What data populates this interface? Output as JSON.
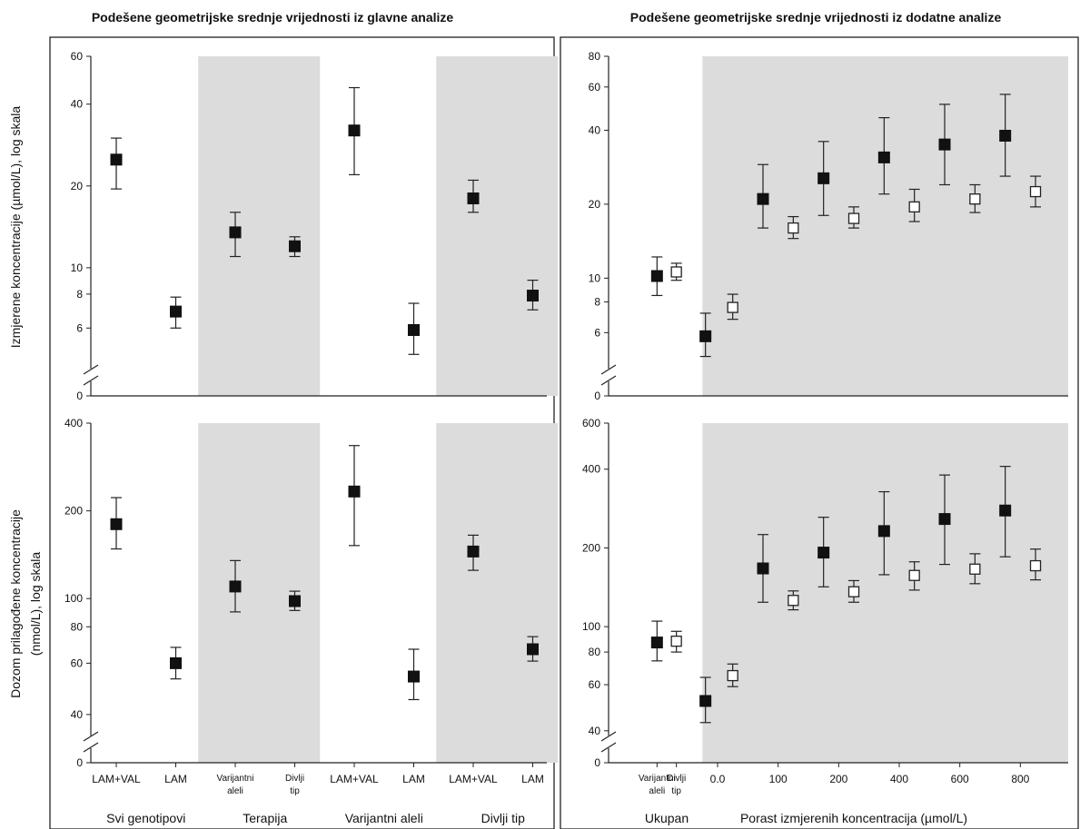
{
  "figure": {
    "left_title": "Podešene geometrijske srednje vrijednosti iz glavne analize",
    "right_title": "Podešene geometrijske srednje vrijednosti iz dodatne analize",
    "ylabel_top": "Izmjerene koncentracije (µmol/L), log skala",
    "ylabel_bottom_line1": "Dozom prilagođene koncentracije",
    "ylabel_bottom_line2": "(nmol/L), log skala"
  },
  "chart_data": [
    {
      "id": "top-left",
      "type": "scatter",
      "yscale": "log",
      "ylim": [
        4,
        60
      ],
      "ytick_labels": [
        "0",
        "6",
        "8",
        "10",
        "20",
        "40",
        "60"
      ],
      "ytick_values": [
        6,
        8,
        10,
        20,
        40,
        60
      ],
      "shaded_groups": [
        2,
        4
      ],
      "points": [
        {
          "x": 1,
          "y": 25,
          "lo": 19.5,
          "hi": 30,
          "marker": "filled"
        },
        {
          "x": 2,
          "y": 6.9,
          "lo": 6.0,
          "hi": 7.8,
          "marker": "filled"
        },
        {
          "x": 3,
          "y": 13.5,
          "lo": 11,
          "hi": 16,
          "marker": "filled"
        },
        {
          "x": 4,
          "y": 12,
          "lo": 11,
          "hi": 13,
          "marker": "filled"
        },
        {
          "x": 5,
          "y": 32,
          "lo": 22,
          "hi": 46,
          "marker": "filled"
        },
        {
          "x": 6,
          "y": 5.9,
          "lo": 4.8,
          "hi": 7.4,
          "marker": "filled"
        },
        {
          "x": 7,
          "y": 18,
          "lo": 16,
          "hi": 21,
          "marker": "filled"
        },
        {
          "x": 8,
          "y": 7.9,
          "lo": 7.0,
          "hi": 9.0,
          "marker": "filled"
        }
      ]
    },
    {
      "id": "bottom-left",
      "type": "scatter",
      "yscale": "log",
      "ylim": [
        32,
        400
      ],
      "ytick_labels": [
        "0",
        "40",
        "60",
        "80",
        "100",
        "200",
        "400"
      ],
      "ytick_values": [
        40,
        60,
        80,
        100,
        200,
        400
      ],
      "shaded_groups": [
        2,
        4
      ],
      "points": [
        {
          "x": 1,
          "y": 180,
          "lo": 148,
          "hi": 222,
          "marker": "filled"
        },
        {
          "x": 2,
          "y": 60,
          "lo": 53,
          "hi": 68,
          "marker": "filled"
        },
        {
          "x": 3,
          "y": 110,
          "lo": 90,
          "hi": 135,
          "marker": "filled"
        },
        {
          "x": 4,
          "y": 98,
          "lo": 91,
          "hi": 106,
          "marker": "filled"
        },
        {
          "x": 5,
          "y": 233,
          "lo": 152,
          "hi": 335,
          "marker": "filled"
        },
        {
          "x": 6,
          "y": 54,
          "lo": 45,
          "hi": 67,
          "marker": "filled"
        },
        {
          "x": 7,
          "y": 145,
          "lo": 125,
          "hi": 165,
          "marker": "filled"
        },
        {
          "x": 8,
          "y": 67,
          "lo": 61,
          "hi": 74,
          "marker": "filled"
        }
      ],
      "x_tick_labels": [
        {
          "x": 1,
          "lines": [
            "LAM+VAL"
          ]
        },
        {
          "x": 2,
          "lines": [
            "LAM"
          ]
        },
        {
          "x": 3,
          "lines": [
            "Varijantni",
            "aleli"
          ]
        },
        {
          "x": 4,
          "lines": [
            "Divlji",
            "tip"
          ]
        },
        {
          "x": 5,
          "lines": [
            "LAM+VAL"
          ]
        },
        {
          "x": 6,
          "lines": [
            "LAM"
          ]
        },
        {
          "x": 7,
          "lines": [
            "LAM+VAL"
          ]
        },
        {
          "x": 8,
          "lines": [
            "LAM"
          ]
        }
      ],
      "group_labels": [
        {
          "x": 1.5,
          "text": "Svi genotipovi"
        },
        {
          "x": 3.5,
          "text": "Terapija"
        },
        {
          "x": 5.5,
          "text": "Varijantni aleli"
        },
        {
          "x": 7.5,
          "text": "Divlji tip"
        }
      ]
    },
    {
      "id": "top-right",
      "type": "scatter",
      "yscale": "log",
      "ylim": [
        4,
        80
      ],
      "ytick_labels": [
        "0",
        "6",
        "8",
        "10",
        "20",
        "40",
        "60",
        "80"
      ],
      "ytick_values": [
        6,
        8,
        10,
        20,
        40,
        60,
        80
      ],
      "xlim": [
        -115,
        900
      ],
      "shade_from": -40,
      "points": [
        {
          "x": -100,
          "y": 10.2,
          "lo": 8.5,
          "hi": 12.2,
          "marker": "filled"
        },
        {
          "x": -68,
          "y": 10.6,
          "lo": 9.8,
          "hi": 11.5,
          "marker": "open"
        },
        {
          "x": -20,
          "y": 5.8,
          "lo": 4.8,
          "hi": 7.2,
          "marker": "filled"
        },
        {
          "x": 25,
          "y": 7.6,
          "lo": 6.8,
          "hi": 8.6,
          "marker": "open"
        },
        {
          "x": 75,
          "y": 21,
          "lo": 16,
          "hi": 29,
          "marker": "filled"
        },
        {
          "x": 125,
          "y": 16,
          "lo": 14.5,
          "hi": 17.8,
          "marker": "open"
        },
        {
          "x": 175,
          "y": 25.5,
          "lo": 18,
          "hi": 36,
          "marker": "filled"
        },
        {
          "x": 225,
          "y": 17.5,
          "lo": 16,
          "hi": 19.5,
          "marker": "open"
        },
        {
          "x": 275,
          "y": 31,
          "lo": 22,
          "hi": 45,
          "marker": "filled"
        },
        {
          "x": 325,
          "y": 19.5,
          "lo": 17,
          "hi": 23,
          "marker": "open"
        },
        {
          "x": 375,
          "y": 35,
          "lo": 24,
          "hi": 51,
          "marker": "filled"
        },
        {
          "x": 425,
          "y": 21,
          "lo": 18.5,
          "hi": 24,
          "marker": "open"
        },
        {
          "x": 475,
          "y": 38,
          "lo": 26,
          "hi": 56,
          "marker": "filled"
        },
        {
          "x": 525,
          "y": 22.5,
          "lo": 19.5,
          "hi": 26,
          "marker": "open"
        }
      ],
      "bottom_axis": false
    },
    {
      "id": "bottom-right",
      "type": "scatter",
      "yscale": "log",
      "ylim": [
        36,
        600
      ],
      "ytick_labels": [
        "0",
        "40",
        "60",
        "80",
        "100",
        "200",
        "400",
        "600"
      ],
      "ytick_values": [
        40,
        60,
        80,
        100,
        200,
        400,
        600
      ],
      "shade_from": -40,
      "points": [
        {
          "x": -100,
          "y": 87,
          "lo": 74,
          "hi": 105,
          "marker": "filled"
        },
        {
          "x": -68,
          "y": 88,
          "lo": 80,
          "hi": 96,
          "marker": "open"
        },
        {
          "x": -20,
          "y": 52,
          "lo": 43,
          "hi": 64,
          "marker": "filled"
        },
        {
          "x": 25,
          "y": 65,
          "lo": 59,
          "hi": 72,
          "marker": "open"
        },
        {
          "x": 75,
          "y": 167,
          "lo": 124,
          "hi": 225,
          "marker": "filled"
        },
        {
          "x": 125,
          "y": 126,
          "lo": 116,
          "hi": 137,
          "marker": "open"
        },
        {
          "x": 175,
          "y": 192,
          "lo": 142,
          "hi": 262,
          "marker": "filled"
        },
        {
          "x": 225,
          "y": 136,
          "lo": 124,
          "hi": 150,
          "marker": "open"
        },
        {
          "x": 275,
          "y": 232,
          "lo": 158,
          "hi": 328,
          "marker": "filled"
        },
        {
          "x": 325,
          "y": 157,
          "lo": 138,
          "hi": 177,
          "marker": "open"
        },
        {
          "x": 375,
          "y": 258,
          "lo": 173,
          "hi": 380,
          "marker": "filled"
        },
        {
          "x": 425,
          "y": 166,
          "lo": 146,
          "hi": 190,
          "marker": "open"
        },
        {
          "x": 475,
          "y": 278,
          "lo": 185,
          "hi": 410,
          "marker": "filled"
        },
        {
          "x": 525,
          "y": 171,
          "lo": 151,
          "hi": 198,
          "marker": "open"
        }
      ],
      "x_tick_labels": [
        {
          "x": -100,
          "lines": [
            "Varijantni",
            "aleli"
          ]
        },
        {
          "x": -68,
          "lines": [
            "Divlji",
            "tip"
          ]
        }
      ],
      "x_numeric_ticks": [
        {
          "x": 0,
          "label": "0.0"
        },
        {
          "x": 100,
          "label": "100"
        },
        {
          "x": 200,
          "label": "200"
        },
        {
          "x": 300,
          "label": "400"
        },
        {
          "x": 400,
          "label": "600"
        },
        {
          "x": 500,
          "label": "800"
        }
      ],
      "group_labels": [
        {
          "x": -84,
          "text": "Ukupan"
        },
        {
          "x": 225,
          "text": "Porast izmjerenih koncentracija (µmol/L)"
        }
      ]
    }
  ]
}
